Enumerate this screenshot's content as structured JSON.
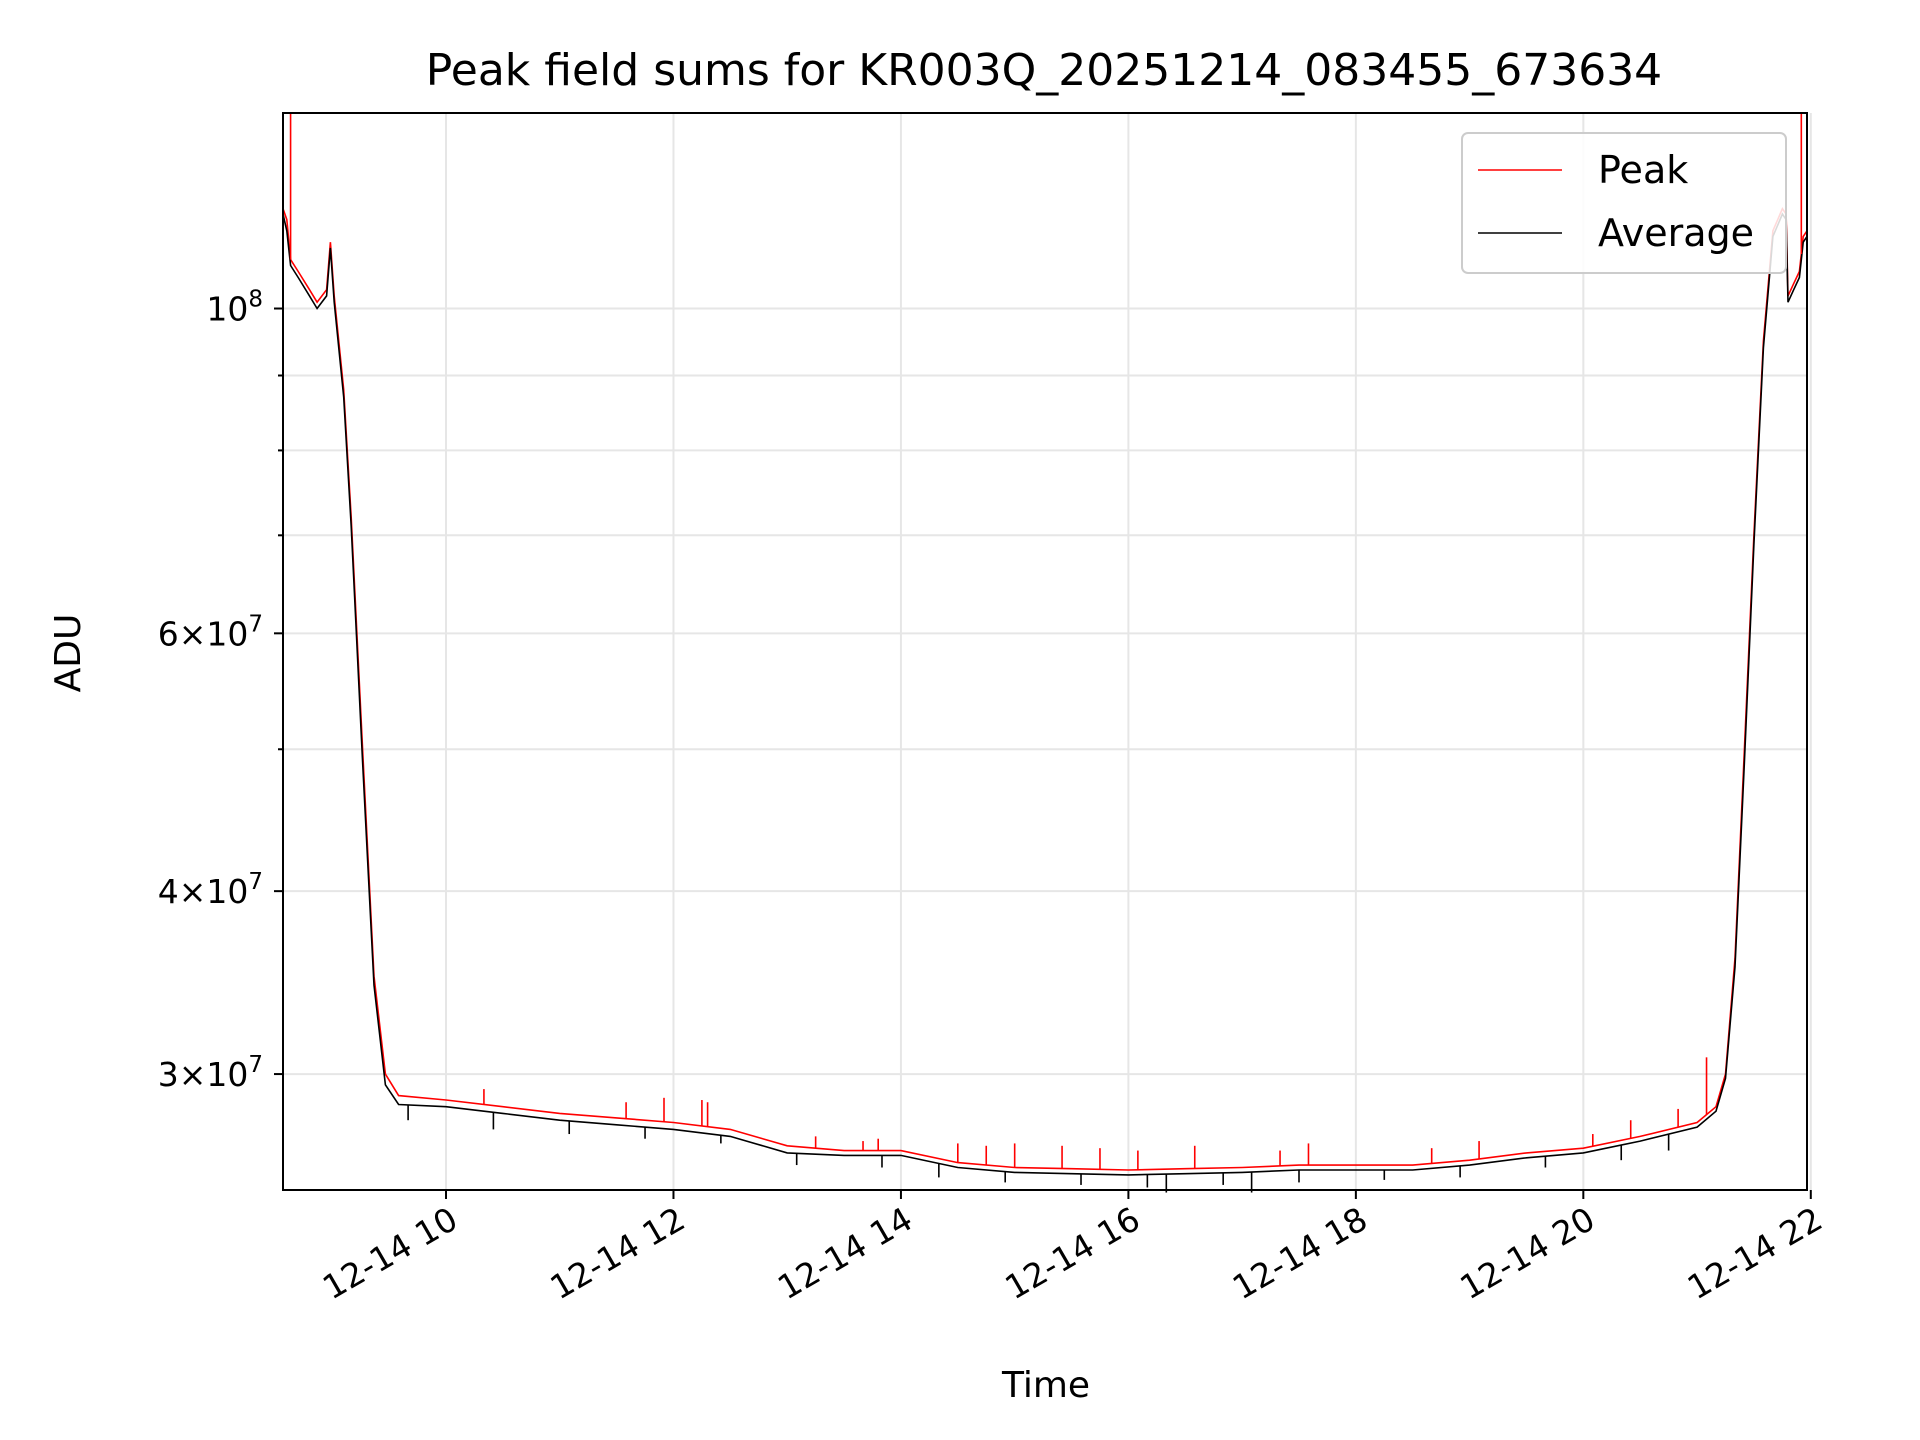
{
  "chart_data": {
    "type": "line",
    "title": "Peak field sums for KR003Q_20251214_083455_673634",
    "xlabel": "Time",
    "ylabel": "ADU",
    "yscale": "log",
    "grid": true,
    "legend_placement": "top-right",
    "x_tick_labels": [
      "12-14 10",
      "12-14 12",
      "12-14 14",
      "12-14 16",
      "12-14 18",
      "12-14 20",
      "12-14 22"
    ],
    "y_major_tick_labels": [
      {
        "value": 100000000,
        "base": "10",
        "exp": "8"
      },
      {
        "value": 60000000,
        "mant": "6",
        "base": "10",
        "exp": "7"
      },
      {
        "value": 40000000,
        "mant": "4",
        "base": "10",
        "exp": "7"
      },
      {
        "value": 30000000,
        "mant": "3",
        "base": "10",
        "exp": "7"
      }
    ],
    "xlim": [
      "2025-12-14 08:34",
      "2025-12-14 21:58"
    ],
    "ylim": [
      25000000,
      136000000
    ],
    "series": [
      {
        "name": "Peak",
        "color": "#ff0000",
        "points": [
          [
            "2025-12-14 08:34",
            117000000
          ],
          [
            "2025-12-14 08:36",
            115000000
          ],
          [
            "2025-12-14 08:38",
            108000000
          ],
          [
            "2025-12-14 08:42",
            106000000
          ],
          [
            "2025-12-14 08:48",
            103000000
          ],
          [
            "2025-12-14 08:52",
            101000000
          ],
          [
            "2025-12-14 08:57",
            103000000
          ],
          [
            "2025-12-14 08:59",
            111000000
          ],
          [
            "2025-12-14 09:01",
            102000000
          ],
          [
            "2025-12-14 09:06",
            88000000
          ],
          [
            "2025-12-14 09:10",
            72000000
          ],
          [
            "2025-12-14 09:16",
            50000000
          ],
          [
            "2025-12-14 09:22",
            35000000
          ],
          [
            "2025-12-14 09:28",
            30000000
          ],
          [
            "2025-12-14 09:35",
            29000000
          ],
          [
            "2025-12-14 10:00",
            28800000
          ],
          [
            "2025-12-14 10:30",
            28500000
          ],
          [
            "2025-12-14 11:00",
            28200000
          ],
          [
            "2025-12-14 11:30",
            28000000
          ],
          [
            "2025-12-14 12:00",
            27800000
          ],
          [
            "2025-12-14 12:30",
            27500000
          ],
          [
            "2025-12-14 13:00",
            26800000
          ],
          [
            "2025-12-14 13:30",
            26600000
          ],
          [
            "2025-12-14 14:00",
            26600000
          ],
          [
            "2025-12-14 14:30",
            26100000
          ],
          [
            "2025-12-14 15:00",
            25900000
          ],
          [
            "2025-12-14 15:30",
            25850000
          ],
          [
            "2025-12-14 16:00",
            25800000
          ],
          [
            "2025-12-14 16:30",
            25850000
          ],
          [
            "2025-12-14 17:00",
            25900000
          ],
          [
            "2025-12-14 17:30",
            26000000
          ],
          [
            "2025-12-14 18:00",
            26000000
          ],
          [
            "2025-12-14 18:30",
            26000000
          ],
          [
            "2025-12-14 19:00",
            26200000
          ],
          [
            "2025-12-14 19:30",
            26500000
          ],
          [
            "2025-12-14 20:00",
            26700000
          ],
          [
            "2025-12-14 20:30",
            27200000
          ],
          [
            "2025-12-14 21:00",
            27800000
          ],
          [
            "2025-12-14 21:10",
            28500000
          ],
          [
            "2025-12-14 21:15",
            30000000
          ],
          [
            "2025-12-14 21:20",
            36000000
          ],
          [
            "2025-12-14 21:25",
            50000000
          ],
          [
            "2025-12-14 21:30",
            70000000
          ],
          [
            "2025-12-14 21:35",
            95000000
          ],
          [
            "2025-12-14 21:40",
            113000000
          ],
          [
            "2025-12-14 21:45",
            117000000
          ],
          [
            "2025-12-14 21:47",
            116000000
          ],
          [
            "2025-12-14 21:48",
            102000000
          ],
          [
            "2025-12-14 21:51",
            104000000
          ],
          [
            "2025-12-14 21:54",
            106000000
          ],
          [
            "2025-12-14 21:56",
            112000000
          ],
          [
            "2025-12-14 21:58",
            113000000
          ]
        ],
        "spikes": [
          [
            "2025-12-14 08:38",
            136000000
          ],
          [
            "2025-12-14 10:20",
            29300000
          ],
          [
            "2025-12-14 11:35",
            28700000
          ],
          [
            "2025-12-14 11:55",
            28900000
          ],
          [
            "2025-12-14 12:15",
            28800000
          ],
          [
            "2025-12-14 12:18",
            28700000
          ],
          [
            "2025-12-14 13:15",
            27200000
          ],
          [
            "2025-12-14 13:40",
            27000000
          ],
          [
            "2025-12-14 13:48",
            27100000
          ],
          [
            "2025-12-14 14:30",
            26900000
          ],
          [
            "2025-12-14 14:45",
            26800000
          ],
          [
            "2025-12-14 15:00",
            26900000
          ],
          [
            "2025-12-14 15:25",
            26800000
          ],
          [
            "2025-12-14 15:45",
            26700000
          ],
          [
            "2025-12-14 16:05",
            26600000
          ],
          [
            "2025-12-14 16:35",
            26800000
          ],
          [
            "2025-12-14 17:20",
            26600000
          ],
          [
            "2025-12-14 17:35",
            26900000
          ],
          [
            "2025-12-14 18:40",
            26700000
          ],
          [
            "2025-12-14 19:05",
            27000000
          ],
          [
            "2025-12-14 20:05",
            27300000
          ],
          [
            "2025-12-14 20:25",
            27900000
          ],
          [
            "2025-12-14 20:50",
            28400000
          ],
          [
            "2025-12-14 21:05",
            30800000
          ],
          [
            "2025-12-14 21:55",
            136000000
          ]
        ]
      },
      {
        "name": "Average",
        "color": "#000000",
        "points": [
          [
            "2025-12-14 08:34",
            116000000
          ],
          [
            "2025-12-14 08:36",
            113000000
          ],
          [
            "2025-12-14 08:38",
            107000000
          ],
          [
            "2025-12-14 08:42",
            105000000
          ],
          [
            "2025-12-14 08:48",
            102000000
          ],
          [
            "2025-12-14 08:52",
            100000000
          ],
          [
            "2025-12-14 08:57",
            102000000
          ],
          [
            "2025-12-14 08:59",
            110000000
          ],
          [
            "2025-12-14 09:01",
            101000000
          ],
          [
            "2025-12-14 09:06",
            87000000
          ],
          [
            "2025-12-14 09:10",
            71000000
          ],
          [
            "2025-12-14 09:16",
            49000000
          ],
          [
            "2025-12-14 09:22",
            34500000
          ],
          [
            "2025-12-14 09:28",
            29500000
          ],
          [
            "2025-12-14 09:35",
            28600000
          ],
          [
            "2025-12-14 10:00",
            28500000
          ],
          [
            "2025-12-14 10:30",
            28200000
          ],
          [
            "2025-12-14 11:00",
            27900000
          ],
          [
            "2025-12-14 11:30",
            27700000
          ],
          [
            "2025-12-14 12:00",
            27500000
          ],
          [
            "2025-12-14 12:30",
            27200000
          ],
          [
            "2025-12-14 13:00",
            26500000
          ],
          [
            "2025-12-14 13:30",
            26400000
          ],
          [
            "2025-12-14 14:00",
            26400000
          ],
          [
            "2025-12-14 14:30",
            25900000
          ],
          [
            "2025-12-14 15:00",
            25700000
          ],
          [
            "2025-12-14 15:30",
            25650000
          ],
          [
            "2025-12-14 16:00",
            25600000
          ],
          [
            "2025-12-14 16:30",
            25650000
          ],
          [
            "2025-12-14 17:00",
            25700000
          ],
          [
            "2025-12-14 17:30",
            25800000
          ],
          [
            "2025-12-14 18:00",
            25800000
          ],
          [
            "2025-12-14 18:30",
            25800000
          ],
          [
            "2025-12-14 19:00",
            26000000
          ],
          [
            "2025-12-14 19:30",
            26300000
          ],
          [
            "2025-12-14 20:00",
            26500000
          ],
          [
            "2025-12-14 20:30",
            27000000
          ],
          [
            "2025-12-14 21:00",
            27600000
          ],
          [
            "2025-12-14 21:10",
            28300000
          ],
          [
            "2025-12-14 21:15",
            29800000
          ],
          [
            "2025-12-14 21:20",
            35500000
          ],
          [
            "2025-12-14 21:25",
            49000000
          ],
          [
            "2025-12-14 21:30",
            69000000
          ],
          [
            "2025-12-14 21:35",
            94000000
          ],
          [
            "2025-12-14 21:40",
            112000000
          ],
          [
            "2025-12-14 21:45",
            116000000
          ],
          [
            "2025-12-14 21:47",
            115000000
          ],
          [
            "2025-12-14 21:48",
            101000000
          ],
          [
            "2025-12-14 21:51",
            103000000
          ],
          [
            "2025-12-14 21:54",
            105000000
          ],
          [
            "2025-12-14 21:56",
            111000000
          ],
          [
            "2025-12-14 21:58",
            112000000
          ]
        ],
        "dips": [
          [
            "2025-12-14 09:40",
            27900000
          ],
          [
            "2025-12-14 10:25",
            27500000
          ],
          [
            "2025-12-14 11:05",
            27300000
          ],
          [
            "2025-12-14 11:45",
            27100000
          ],
          [
            "2025-12-14 12:25",
            26900000
          ],
          [
            "2025-12-14 13:05",
            26000000
          ],
          [
            "2025-12-14 13:50",
            25900000
          ],
          [
            "2025-12-14 14:20",
            25500000
          ],
          [
            "2025-12-14 14:55",
            25300000
          ],
          [
            "2025-12-14 15:35",
            25200000
          ],
          [
            "2025-12-14 16:10",
            25100000
          ],
          [
            "2025-12-14 16:20",
            24900000
          ],
          [
            "2025-12-14 16:50",
            25200000
          ],
          [
            "2025-12-14 17:05",
            24900000
          ],
          [
            "2025-12-14 17:30",
            25300000
          ],
          [
            "2025-12-14 18:15",
            25400000
          ],
          [
            "2025-12-14 18:55",
            25500000
          ],
          [
            "2025-12-14 19:40",
            25900000
          ],
          [
            "2025-12-14 20:20",
            26200000
          ],
          [
            "2025-12-14 20:45",
            26600000
          ]
        ]
      }
    ]
  }
}
